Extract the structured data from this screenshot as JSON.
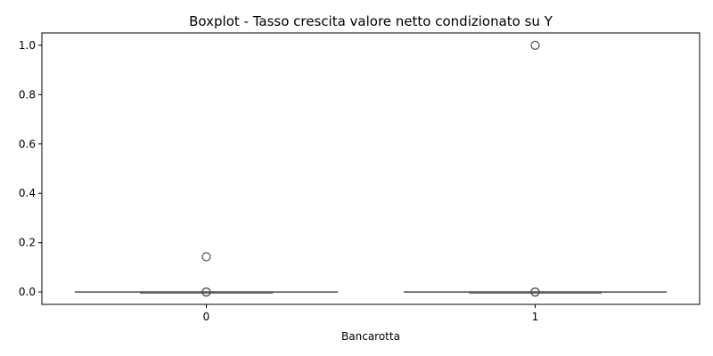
{
  "chart_data": {
    "type": "boxplot",
    "title": "Boxplot - Tasso crescita valore netto condizionato su Y",
    "xlabel": "Bancarotta",
    "ylabel": "",
    "categories": [
      "0",
      "1"
    ],
    "ylim": [
      -0.05,
      1.05
    ],
    "yticks": [
      0.0,
      0.2,
      0.4,
      0.6,
      0.8,
      1.0
    ],
    "ytick_labels": [
      "0.0",
      "0.2",
      "0.4",
      "0.6",
      "0.8",
      "1.0"
    ],
    "grid": false,
    "boxes": [
      {
        "category": "0",
        "q1": 0.0,
        "median": 0.0,
        "q3": 0.0,
        "whisker_low": 0.0,
        "whisker_high": 0.0,
        "outliers": [
          0.0,
          0.0,
          0.143
        ]
      },
      {
        "category": "1",
        "q1": 0.0,
        "median": 0.0,
        "q3": 0.0,
        "whisker_low": 0.0,
        "whisker_high": 0.0,
        "outliers": [
          0.0,
          0.0,
          1.0
        ]
      }
    ],
    "colors": {
      "box_line": "#5f5f5f",
      "outlier_edge": "#4d4d4d",
      "axis": "#000000"
    }
  }
}
